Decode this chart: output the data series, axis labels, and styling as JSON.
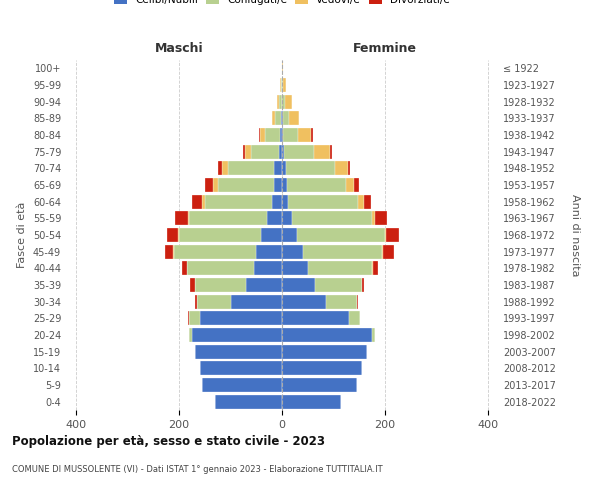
{
  "age_groups": [
    "0-4",
    "5-9",
    "10-14",
    "15-19",
    "20-24",
    "25-29",
    "30-34",
    "35-39",
    "40-44",
    "45-49",
    "50-54",
    "55-59",
    "60-64",
    "65-69",
    "70-74",
    "75-79",
    "80-84",
    "85-89",
    "90-94",
    "95-99",
    "100+"
  ],
  "birth_years": [
    "2018-2022",
    "2013-2017",
    "2008-2012",
    "2003-2007",
    "1998-2002",
    "1993-1997",
    "1988-1992",
    "1983-1987",
    "1978-1982",
    "1973-1977",
    "1968-1972",
    "1963-1967",
    "1958-1962",
    "1953-1957",
    "1948-1952",
    "1943-1947",
    "1938-1942",
    "1933-1937",
    "1928-1932",
    "1923-1927",
    "≤ 1922"
  ],
  "colors": {
    "celibi": "#4472C4",
    "coniugati": "#b8d090",
    "vedovi": "#f0c060",
    "divorziati": "#cc2010"
  },
  "males": {
    "celibi": [
      130,
      155,
      160,
      170,
      175,
      160,
      100,
      70,
      55,
      50,
      40,
      30,
      20,
      15,
      15,
      5,
      3,
      2,
      0,
      0,
      0
    ],
    "coniugati": [
      0,
      0,
      0,
      0,
      5,
      20,
      65,
      100,
      130,
      160,
      160,
      150,
      130,
      110,
      90,
      55,
      30,
      12,
      5,
      2,
      0
    ],
    "vedovi": [
      0,
      0,
      0,
      0,
      0,
      0,
      0,
      0,
      0,
      2,
      3,
      3,
      5,
      10,
      12,
      12,
      10,
      5,
      5,
      2,
      0
    ],
    "divorziati": [
      0,
      0,
      0,
      0,
      0,
      3,
      5,
      8,
      10,
      15,
      20,
      25,
      20,
      15,
      8,
      3,
      2,
      0,
      0,
      0,
      0
    ]
  },
  "females": {
    "celibi": [
      115,
      145,
      155,
      165,
      175,
      130,
      85,
      65,
      50,
      40,
      30,
      20,
      12,
      10,
      8,
      3,
      2,
      2,
      0,
      0,
      0
    ],
    "coniugati": [
      0,
      0,
      0,
      0,
      5,
      22,
      60,
      90,
      125,
      155,
      170,
      155,
      135,
      115,
      95,
      60,
      30,
      12,
      5,
      2,
      0
    ],
    "vedovi": [
      0,
      0,
      0,
      0,
      0,
      0,
      0,
      0,
      2,
      2,
      3,
      5,
      12,
      15,
      25,
      30,
      25,
      20,
      15,
      5,
      2
    ],
    "divorziati": [
      0,
      0,
      0,
      0,
      0,
      0,
      3,
      5,
      10,
      20,
      25,
      25,
      15,
      10,
      5,
      5,
      3,
      0,
      0,
      0,
      0
    ]
  },
  "xlim": [
    -420,
    420
  ],
  "xticks": [
    -400,
    -200,
    0,
    200,
    400
  ],
  "xtick_labels": [
    "400",
    "200",
    "0",
    "200",
    "400"
  ],
  "title": "Popolazione per età, sesso e stato civile - 2023",
  "subtitle": "COMUNE DI MUSSOLENTE (VI) - Dati ISTAT 1° gennaio 2023 - Elaborazione TUTTITALIA.IT",
  "ylabel_left": "Fasce di età",
  "ylabel_right": "Anni di nascita",
  "label_maschi": "Maschi",
  "label_femmine": "Femmine",
  "legend_labels": [
    "Celibi/Nubili",
    "Coniugati/e",
    "Vedovi/e",
    "Divorziati/e"
  ]
}
